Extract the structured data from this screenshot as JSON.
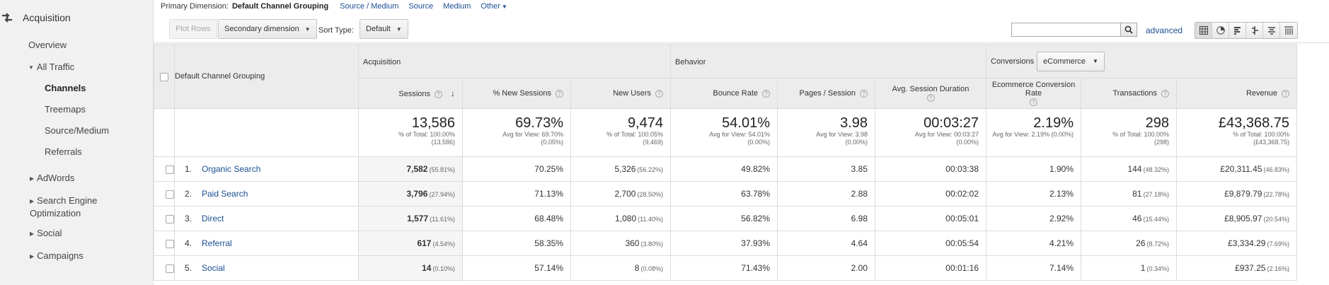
{
  "sidebar": {
    "section": "Acquisition",
    "overview": "Overview",
    "all_traffic": "All Traffic",
    "channels": "Channels",
    "treemaps": "Treemaps",
    "source_medium": "Source/Medium",
    "referrals": "Referrals",
    "adwords": "AdWords",
    "seo": "Search Engine Optimization",
    "social": "Social",
    "campaigns": "Campaigns"
  },
  "primary": {
    "label": "Primary Dimension:",
    "current": "Default Channel Grouping",
    "links": [
      "Source / Medium",
      "Source",
      "Medium",
      "Other"
    ]
  },
  "toolbar": {
    "plot_rows": "Plot Rows",
    "secondary_dimension": "Secondary dimension",
    "sort_type_label": "Sort Type:",
    "sort_type_value": "Default",
    "search_value": "",
    "advanced": "advanced"
  },
  "table": {
    "dimension_header": "Default Channel Grouping",
    "groups": {
      "acquisition": "Acquisition",
      "behavior": "Behavior",
      "conversions": "Conversions",
      "conversion_select": "eCommerce"
    },
    "columns": [
      "Sessions",
      "% New Sessions",
      "New Users",
      "Bounce Rate",
      "Pages / Session",
      "Avg. Session Duration",
      "Ecommerce Conversion Rate",
      "Transactions",
      "Revenue"
    ],
    "totals": [
      {
        "value": "13,586",
        "sub1": "% of Total: 100.00%",
        "sub2": "(13,586)"
      },
      {
        "value": "69.73%",
        "sub1": "Avg for View: 69.70%",
        "sub2": "(0.05%)"
      },
      {
        "value": "9,474",
        "sub1": "% of Total: 100.05%",
        "sub2": "(9,469)"
      },
      {
        "value": "54.01%",
        "sub1": "Avg for View: 54.01%",
        "sub2": "(0.00%)"
      },
      {
        "value": "3.98",
        "sub1": "Avg for View: 3.98",
        "sub2": "(0.00%)"
      },
      {
        "value": "00:03:27",
        "sub1": "Avg for View: 00:03:27",
        "sub2": "(0.00%)"
      },
      {
        "value": "2.19%",
        "sub1": "Avg for View: 2.19% (0.00%)",
        "sub2": ""
      },
      {
        "value": "298",
        "sub1": "% of Total: 100.00%",
        "sub2": "(298)"
      },
      {
        "value": "£43,368.75",
        "sub1": "% of Total: 100.00%",
        "sub2": "(£43,368.75)"
      }
    ],
    "rows": [
      {
        "num": "1.",
        "channel": "Organic Search",
        "sessions": "7,582",
        "sessions_pct": "(55.81%)",
        "new_sessions": "70.25%",
        "new_users": "5,326",
        "new_users_pct": "(56.22%)",
        "bounce": "49.82%",
        "pages": "3.85",
        "duration": "00:03:38",
        "conv": "1.90%",
        "trans": "144",
        "trans_pct": "(48.32%)",
        "revenue": "£20,311.45",
        "revenue_pct": "(46.83%)"
      },
      {
        "num": "2.",
        "channel": "Paid Search",
        "sessions": "3,796",
        "sessions_pct": "(27.94%)",
        "new_sessions": "71.13%",
        "new_users": "2,700",
        "new_users_pct": "(28.50%)",
        "bounce": "63.78%",
        "pages": "2.88",
        "duration": "00:02:02",
        "conv": "2.13%",
        "trans": "81",
        "trans_pct": "(27.18%)",
        "revenue": "£9,879.79",
        "revenue_pct": "(22.78%)"
      },
      {
        "num": "3.",
        "channel": "Direct",
        "sessions": "1,577",
        "sessions_pct": "(11.61%)",
        "new_sessions": "68.48%",
        "new_users": "1,080",
        "new_users_pct": "(11.40%)",
        "bounce": "56.82%",
        "pages": "6.98",
        "duration": "00:05:01",
        "conv": "2.92%",
        "trans": "46",
        "trans_pct": "(15.44%)",
        "revenue": "£8,905.97",
        "revenue_pct": "(20.54%)"
      },
      {
        "num": "4.",
        "channel": "Referral",
        "sessions": "617",
        "sessions_pct": "(4.54%)",
        "new_sessions": "58.35%",
        "new_users": "360",
        "new_users_pct": "(3.80%)",
        "bounce": "37.93%",
        "pages": "4.64",
        "duration": "00:05:54",
        "conv": "4.21%",
        "trans": "26",
        "trans_pct": "(8.72%)",
        "revenue": "£3,334.29",
        "revenue_pct": "(7.69%)"
      },
      {
        "num": "5.",
        "channel": "Social",
        "sessions": "14",
        "sessions_pct": "(0.10%)",
        "new_sessions": "57.14%",
        "new_users": "8",
        "new_users_pct": "(0.08%)",
        "bounce": "71.43%",
        "pages": "2.00",
        "duration": "00:01:16",
        "conv": "7.14%",
        "trans": "1",
        "trans_pct": "(0.34%)",
        "revenue": "£937.25",
        "revenue_pct": "(2.16%)"
      }
    ]
  }
}
